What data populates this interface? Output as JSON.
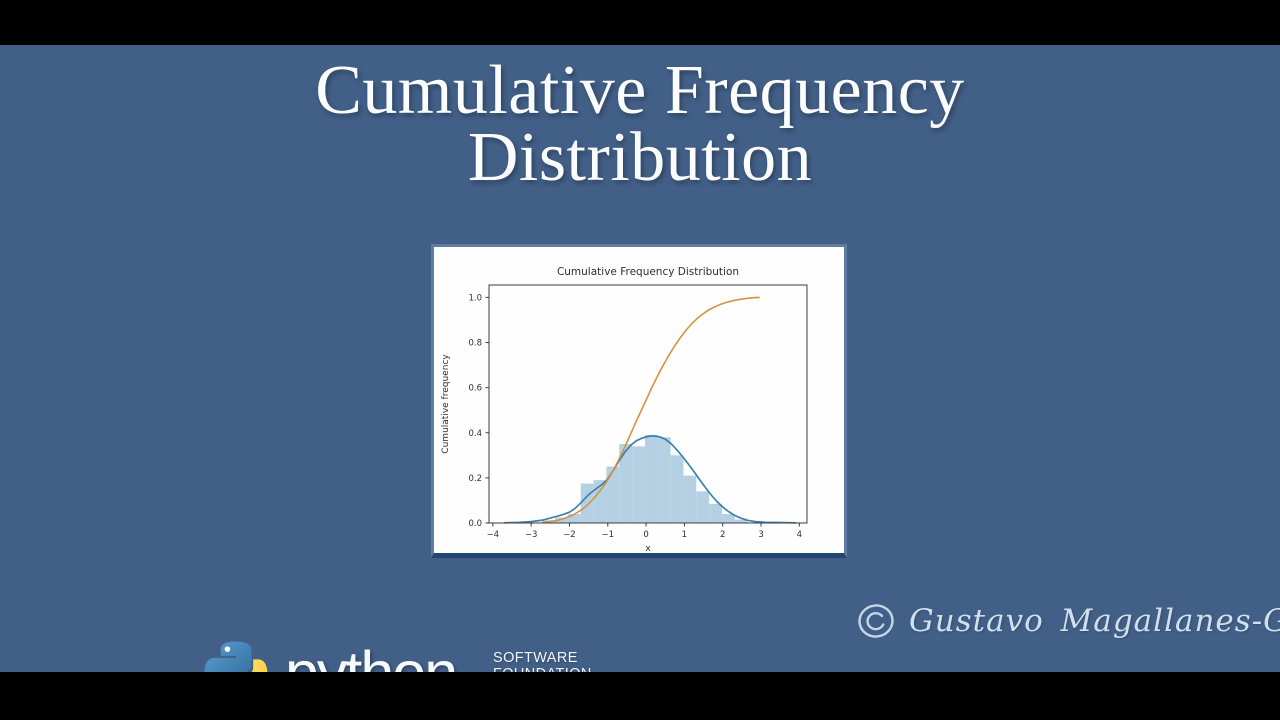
{
  "slide": {
    "title_line1": "Cumulative Frequency",
    "title_line2": "Distribution"
  },
  "branding": {
    "wordmark": "python",
    "org_line1": "SOFTWARE",
    "org_line2": "FOUNDATION"
  },
  "signature": {
    "symbol": "©",
    "name": "Gustavo Magallanes-Guijón"
  },
  "colors": {
    "slide_background": "#425f87",
    "letterbox": "#000000",
    "title_text": "#fbfcfe",
    "panel_background": "#fefefe",
    "panel_border": "#5f7da3",
    "panel_border_bottom": "#24476f",
    "python_blue": "#3b78a8",
    "python_yellow": "#ffd43b",
    "signature_text": "#cfe0ee"
  },
  "chart_data": {
    "type": "histogram",
    "title": "Cumulative Frequency Distribution",
    "xlabel": "x",
    "ylabel": "Cumulative frequency",
    "xlim": [
      -4.1,
      4.2
    ],
    "ylim": [
      0,
      1.055
    ],
    "xticks": [
      -4,
      -3,
      -2,
      -1,
      0,
      1,
      2,
      3,
      4
    ],
    "yticks": [
      0.0,
      0.2,
      0.4,
      0.6,
      0.8,
      1.0
    ],
    "grid": false,
    "legend": "none",
    "hist": {
      "name": "histogram (density)",
      "bin_start": -2.71,
      "bin_width": 0.335,
      "heights": [
        0.012,
        0.024,
        0.04,
        0.175,
        0.19,
        0.25,
        0.35,
        0.34,
        0.39,
        0.38,
        0.3,
        0.21,
        0.14,
        0.085,
        0.04,
        0.015
      ],
      "color": "#b4d0e2"
    },
    "kde": {
      "name": "kde density curve",
      "color": "#3e80ad",
      "points": [
        [
          -3.7,
          0.001
        ],
        [
          -3.3,
          0.003
        ],
        [
          -3.0,
          0.006
        ],
        [
          -2.7,
          0.013
        ],
        [
          -2.45,
          0.024
        ],
        [
          -2.2,
          0.036
        ],
        [
          -2.0,
          0.048
        ],
        [
          -1.85,
          0.065
        ],
        [
          -1.7,
          0.09
        ],
        [
          -1.55,
          0.117
        ],
        [
          -1.45,
          0.133
        ],
        [
          -1.3,
          0.152
        ],
        [
          -1.15,
          0.17
        ],
        [
          -1.0,
          0.196
        ],
        [
          -0.85,
          0.235
        ],
        [
          -0.7,
          0.277
        ],
        [
          -0.55,
          0.315
        ],
        [
          -0.4,
          0.345
        ],
        [
          -0.25,
          0.365
        ],
        [
          -0.1,
          0.377
        ],
        [
          0.05,
          0.384
        ],
        [
          0.2,
          0.386
        ],
        [
          0.35,
          0.382
        ],
        [
          0.5,
          0.372
        ],
        [
          0.65,
          0.352
        ],
        [
          0.8,
          0.325
        ],
        [
          0.95,
          0.295
        ],
        [
          1.1,
          0.262
        ],
        [
          1.25,
          0.228
        ],
        [
          1.4,
          0.192
        ],
        [
          1.55,
          0.157
        ],
        [
          1.7,
          0.124
        ],
        [
          1.85,
          0.095
        ],
        [
          2.0,
          0.071
        ],
        [
          2.15,
          0.051
        ],
        [
          2.3,
          0.035
        ],
        [
          2.45,
          0.023
        ],
        [
          2.65,
          0.012
        ],
        [
          2.85,
          0.006
        ],
        [
          3.1,
          0.003
        ],
        [
          3.4,
          0.002
        ],
        [
          3.9,
          0.001
        ]
      ]
    },
    "cdf": {
      "name": "cumulative frequency curve",
      "color": "#d9913f",
      "points": [
        [
          -2.7,
          0.002
        ],
        [
          -2.5,
          0.006
        ],
        [
          -2.3,
          0.012
        ],
        [
          -2.1,
          0.022
        ],
        [
          -1.95,
          0.032
        ],
        [
          -1.8,
          0.046
        ],
        [
          -1.65,
          0.063
        ],
        [
          -1.5,
          0.085
        ],
        [
          -1.35,
          0.112
        ],
        [
          -1.2,
          0.143
        ],
        [
          -1.05,
          0.178
        ],
        [
          -0.9,
          0.22
        ],
        [
          -0.75,
          0.268
        ],
        [
          -0.6,
          0.32
        ],
        [
          -0.45,
          0.376
        ],
        [
          -0.3,
          0.435
        ],
        [
          -0.15,
          0.49
        ],
        [
          0.0,
          0.545
        ],
        [
          0.15,
          0.6
        ],
        [
          0.3,
          0.652
        ],
        [
          0.45,
          0.7
        ],
        [
          0.6,
          0.745
        ],
        [
          0.75,
          0.786
        ],
        [
          0.9,
          0.823
        ],
        [
          1.05,
          0.856
        ],
        [
          1.2,
          0.885
        ],
        [
          1.35,
          0.909
        ],
        [
          1.5,
          0.929
        ],
        [
          1.65,
          0.946
        ],
        [
          1.8,
          0.959
        ],
        [
          1.95,
          0.97
        ],
        [
          2.1,
          0.978
        ],
        [
          2.25,
          0.985
        ],
        [
          2.4,
          0.99
        ],
        [
          2.55,
          0.994
        ],
        [
          2.7,
          0.997
        ],
        [
          2.85,
          0.999
        ],
        [
          2.95,
          1.0
        ]
      ]
    }
  }
}
